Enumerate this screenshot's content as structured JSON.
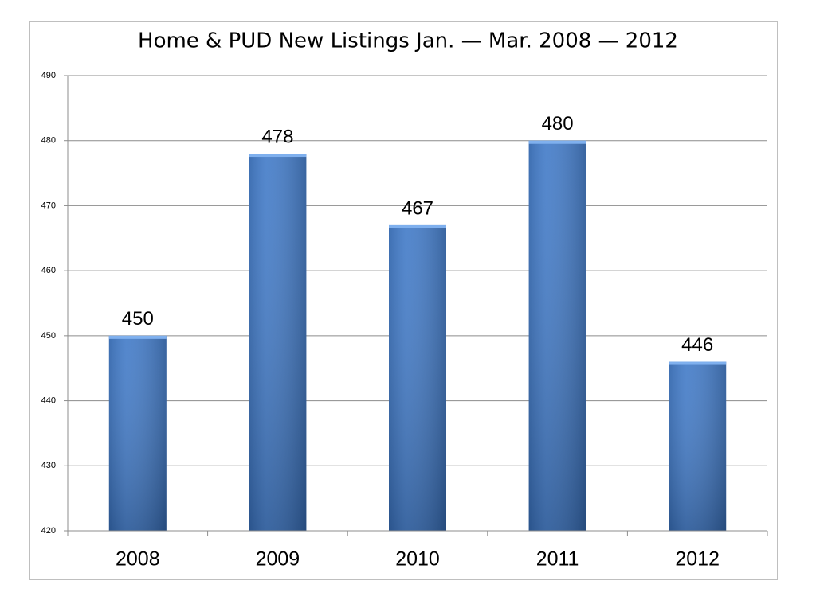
{
  "chart_data": {
    "type": "bar",
    "title": "Home & PUD New Listings Jan. — Mar. 2008 — 2012",
    "categories": [
      "2008",
      "2009",
      "2010",
      "2011",
      "2012"
    ],
    "values": [
      450,
      478,
      467,
      480,
      446
    ],
    "color": "#3b76c6",
    "ylim": [
      420,
      490
    ],
    "yticks": [
      420,
      430,
      440,
      450,
      460,
      470,
      480,
      490
    ],
    "grid": true
  }
}
